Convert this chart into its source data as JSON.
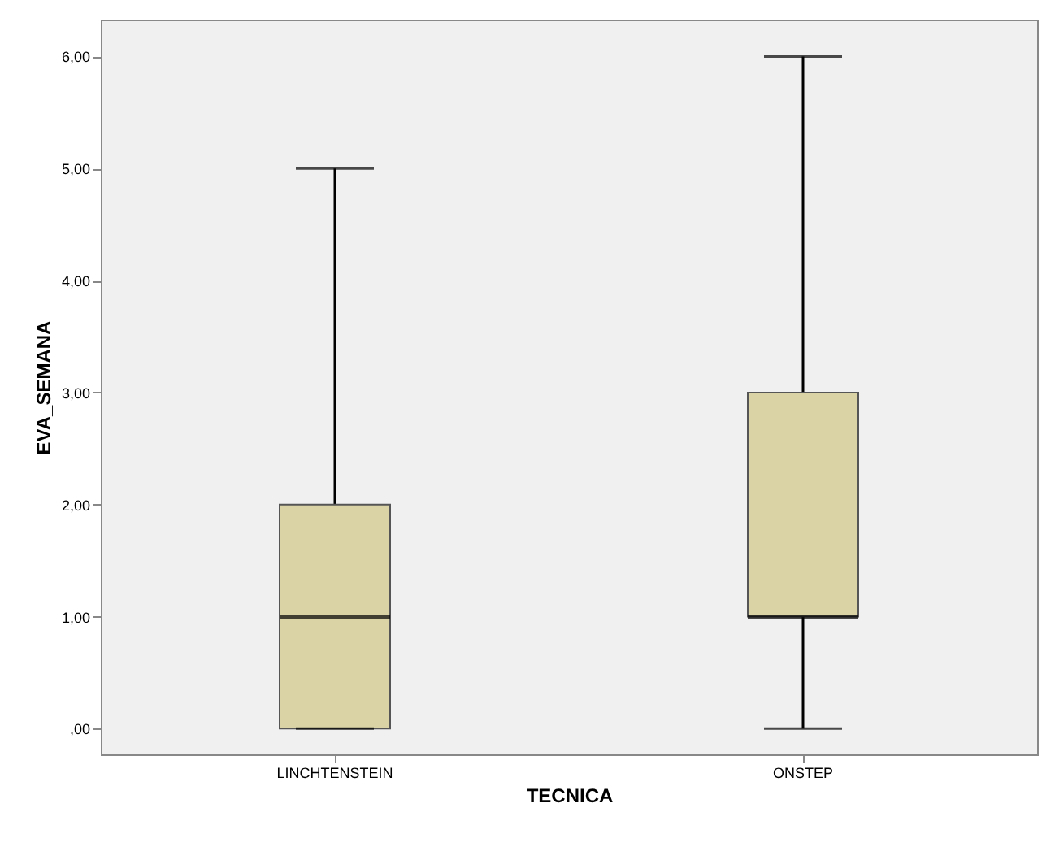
{
  "chart_data": {
    "type": "box",
    "xlabel": "TECNICA",
    "ylabel": "EVA_SEMANA",
    "categories": [
      "LINCHTENSTEIN",
      "ONSTEP"
    ],
    "color": "#d9d3a5",
    "boxes": [
      {
        "low": 0,
        "q1": 0,
        "median": 1,
        "q3": 2,
        "high": 5
      },
      {
        "low": 0,
        "q1": 1,
        "median": 1,
        "q3": 3,
        "high": 6
      }
    ],
    "ylim": [
      -0.23,
      6.33
    ],
    "yticks": [
      {
        "value": 0,
        "label": ",00"
      },
      {
        "value": 1,
        "label": "1,00"
      },
      {
        "value": 2,
        "label": "2,00"
      },
      {
        "value": 3,
        "label": "3,00"
      },
      {
        "value": 4,
        "label": "4,00"
      },
      {
        "value": 5,
        "label": "5,00"
      },
      {
        "value": 6,
        "label": "6,00"
      }
    ],
    "grid": false
  }
}
